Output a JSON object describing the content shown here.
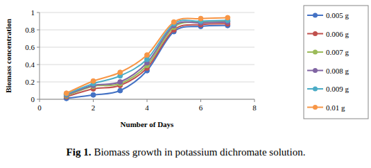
{
  "chart_data": {
    "type": "line",
    "caption": {
      "label": "Fig 1.",
      "text": "Biomass growth in potassium dichromate solution."
    },
    "x_label": "Number of Days",
    "y_label": "Biomass concentration",
    "x": [
      1,
      2,
      3,
      4,
      5,
      6,
      7
    ],
    "series": [
      {
        "name": "0.005 g",
        "color": "#4472c4",
        "values": [
          0.01,
          0.05,
          0.1,
          0.33,
          0.78,
          0.84,
          0.85
        ]
      },
      {
        "name": "0.006 g",
        "color": "#c0504d",
        "values": [
          0.03,
          0.12,
          0.16,
          0.36,
          0.8,
          0.86,
          0.87
        ]
      },
      {
        "name": "0.007 g",
        "color": "#9bbb59",
        "values": [
          0.04,
          0.15,
          0.18,
          0.39,
          0.83,
          0.89,
          0.9
        ]
      },
      {
        "name": "0.008 g",
        "color": "#8064a2",
        "values": [
          0.05,
          0.16,
          0.2,
          0.42,
          0.85,
          0.88,
          0.89
        ]
      },
      {
        "name": "0.009 g",
        "color": "#4bacc6",
        "values": [
          0.06,
          0.18,
          0.27,
          0.46,
          0.87,
          0.9,
          0.91
        ]
      },
      {
        "name": "0.01 g",
        "color": "#f79646",
        "values": [
          0.07,
          0.21,
          0.31,
          0.51,
          0.89,
          0.93,
          0.94
        ]
      }
    ],
    "xlim": [
      0,
      8
    ],
    "xticks": [
      0,
      2,
      4,
      6,
      8
    ],
    "ylim": [
      0,
      1
    ],
    "yticks": [
      0,
      0.2,
      0.4,
      0.6,
      0.8,
      1
    ],
    "grid": true,
    "legend": "right",
    "marker": "circle",
    "line_style": "smooth"
  }
}
